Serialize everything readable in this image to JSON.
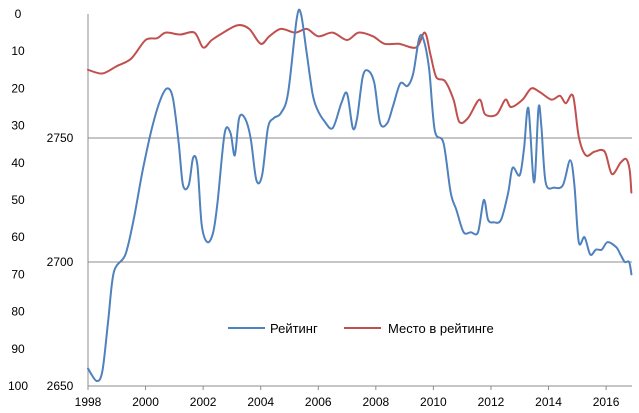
{
  "chart_data": {
    "type": "line",
    "title": "",
    "xlabel": "",
    "ylabel": "",
    "grid": "horizontal",
    "legend_placement": "bottom-center",
    "x_axis": {
      "min": 1998,
      "max": 2016.9,
      "ticks": [
        "1998",
        "2000",
        "2002",
        "2004",
        "2006",
        "2008",
        "2010",
        "2012",
        "2014",
        "2016"
      ]
    },
    "y_axis_rank": {
      "min": 0,
      "max": 100,
      "inverted": true,
      "ticks": [
        "0",
        "10",
        "20",
        "30",
        "40",
        "50",
        "60",
        "70",
        "80",
        "90",
        "100"
      ]
    },
    "y_axis_rating": {
      "min": 2650,
      "max": 2800,
      "ticks": [
        "2650",
        "2700",
        "2750"
      ],
      "gridlines": [
        2700,
        2750
      ]
    },
    "series": [
      {
        "name": "Рейтинг",
        "axis": "rating",
        "color": "#4f81bd",
        "points": [
          [
            1998.0,
            2657
          ],
          [
            1998.3,
            2652
          ],
          [
            1998.5,
            2656
          ],
          [
            1998.7,
            2676
          ],
          [
            1998.9,
            2696
          ],
          [
            1999.3,
            2703
          ],
          [
            1999.6,
            2718
          ],
          [
            1999.9,
            2737
          ],
          [
            2000.2,
            2753
          ],
          [
            2000.5,
            2765
          ],
          [
            2000.75,
            2770
          ],
          [
            2000.95,
            2766
          ],
          [
            2001.15,
            2748
          ],
          [
            2001.3,
            2731
          ],
          [
            2001.5,
            2731
          ],
          [
            2001.65,
            2742
          ],
          [
            2001.8,
            2739
          ],
          [
            2001.95,
            2715
          ],
          [
            2002.15,
            2708
          ],
          [
            2002.35,
            2712
          ],
          [
            2002.5,
            2724
          ],
          [
            2002.75,
            2752
          ],
          [
            2002.95,
            2752
          ],
          [
            2003.1,
            2743
          ],
          [
            2003.25,
            2758
          ],
          [
            2003.45,
            2758
          ],
          [
            2003.65,
            2750
          ],
          [
            2003.85,
            2733
          ],
          [
            2004.05,
            2735
          ],
          [
            2004.25,
            2754
          ],
          [
            2004.45,
            2758
          ],
          [
            2004.7,
            2760
          ],
          [
            2004.95,
            2768
          ],
          [
            2005.25,
            2798
          ],
          [
            2005.4,
            2800
          ],
          [
            2005.6,
            2784
          ],
          [
            2005.8,
            2768
          ],
          [
            2005.95,
            2762
          ],
          [
            2006.2,
            2757
          ],
          [
            2006.5,
            2754
          ],
          [
            2006.8,
            2764
          ],
          [
            2007.0,
            2768
          ],
          [
            2007.2,
            2754
          ],
          [
            2007.35,
            2758
          ],
          [
            2007.55,
            2775
          ],
          [
            2007.75,
            2777
          ],
          [
            2007.95,
            2772
          ],
          [
            2008.15,
            2756
          ],
          [
            2008.4,
            2756
          ],
          [
            2008.6,
            2763
          ],
          [
            2008.85,
            2772
          ],
          [
            2009.1,
            2771
          ],
          [
            2009.3,
            2776
          ],
          [
            2009.5,
            2790
          ],
          [
            2009.65,
            2790
          ],
          [
            2009.85,
            2778
          ],
          [
            2010.05,
            2753
          ],
          [
            2010.35,
            2748
          ],
          [
            2010.6,
            2728
          ],
          [
            2010.8,
            2721
          ],
          [
            2011.05,
            2712
          ],
          [
            2011.3,
            2712
          ],
          [
            2011.55,
            2712
          ],
          [
            2011.75,
            2725
          ],
          [
            2011.9,
            2717
          ],
          [
            2012.1,
            2716
          ],
          [
            2012.35,
            2717
          ],
          [
            2012.6,
            2728
          ],
          [
            2012.75,
            2738
          ],
          [
            2013.0,
            2735
          ],
          [
            2013.15,
            2746
          ],
          [
            2013.3,
            2762
          ],
          [
            2013.5,
            2732
          ],
          [
            2013.65,
            2762
          ],
          [
            2013.75,
            2755
          ],
          [
            2013.9,
            2732
          ],
          [
            2014.2,
            2730
          ],
          [
            2014.5,
            2731
          ],
          [
            2014.75,
            2741
          ],
          [
            2014.9,
            2731
          ],
          [
            2015.05,
            2708
          ],
          [
            2015.25,
            2710
          ],
          [
            2015.45,
            2703
          ],
          [
            2015.65,
            2705
          ],
          [
            2015.85,
            2705
          ],
          [
            2016.05,
            2708
          ],
          [
            2016.35,
            2706
          ],
          [
            2016.5,
            2703
          ],
          [
            2016.65,
            2700
          ],
          [
            2016.8,
            2700
          ],
          [
            2016.88,
            2695
          ]
        ]
      },
      {
        "name": "Место в рейтинге",
        "axis": "rank",
        "color": "#c0504d",
        "points": [
          [
            1998.0,
            15
          ],
          [
            1998.5,
            16
          ],
          [
            1999.0,
            14
          ],
          [
            1999.5,
            12
          ],
          [
            2000.0,
            7
          ],
          [
            2000.4,
            6.5
          ],
          [
            2000.7,
            5
          ],
          [
            2001.2,
            5.5
          ],
          [
            2001.7,
            5
          ],
          [
            2002.0,
            9
          ],
          [
            2002.3,
            7
          ],
          [
            2002.7,
            5
          ],
          [
            2003.2,
            3
          ],
          [
            2003.6,
            4
          ],
          [
            2004.0,
            8
          ],
          [
            2004.3,
            6
          ],
          [
            2004.7,
            4
          ],
          [
            2005.2,
            5
          ],
          [
            2005.6,
            4
          ],
          [
            2006.0,
            6
          ],
          [
            2006.5,
            5
          ],
          [
            2007.0,
            7
          ],
          [
            2007.4,
            5
          ],
          [
            2007.9,
            6
          ],
          [
            2008.3,
            8
          ],
          [
            2008.8,
            8
          ],
          [
            2009.4,
            9
          ],
          [
            2009.7,
            5
          ],
          [
            2009.9,
            11
          ],
          [
            2010.1,
            17
          ],
          [
            2010.4,
            18
          ],
          [
            2010.7,
            23
          ],
          [
            2010.9,
            29
          ],
          [
            2011.2,
            28
          ],
          [
            2011.6,
            23
          ],
          [
            2011.8,
            27
          ],
          [
            2012.2,
            27
          ],
          [
            2012.5,
            23
          ],
          [
            2012.7,
            25
          ],
          [
            2013.1,
            23
          ],
          [
            2013.4,
            20
          ],
          [
            2013.7,
            21
          ],
          [
            2014.1,
            23
          ],
          [
            2014.4,
            22
          ],
          [
            2014.6,
            24
          ],
          [
            2014.85,
            22
          ],
          [
            2015.05,
            33
          ],
          [
            2015.3,
            38
          ],
          [
            2015.6,
            37
          ],
          [
            2015.95,
            37
          ],
          [
            2016.2,
            43
          ],
          [
            2016.5,
            40
          ],
          [
            2016.7,
            39
          ],
          [
            2016.82,
            42
          ],
          [
            2016.88,
            48
          ]
        ]
      }
    ]
  }
}
